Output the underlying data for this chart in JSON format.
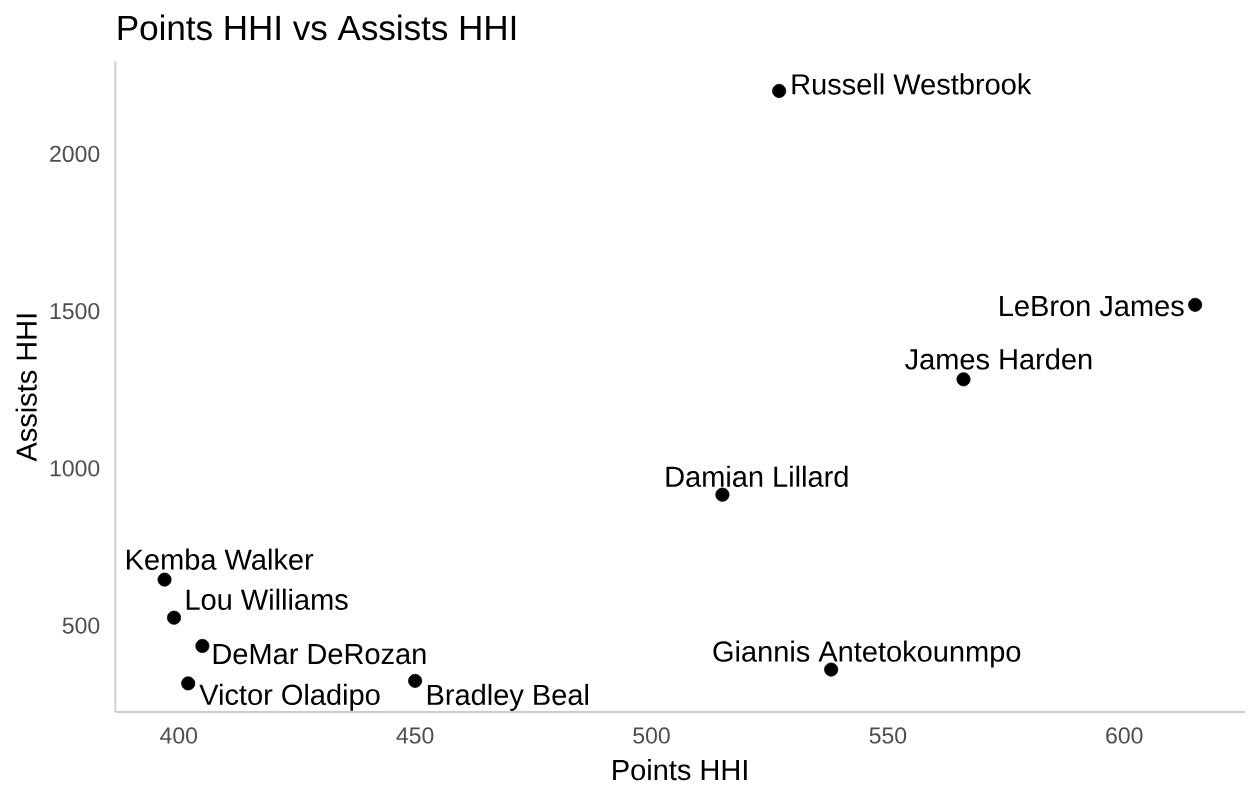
{
  "chart_data": {
    "type": "scatter",
    "title": "Points HHI vs Assists HHI",
    "xlabel": "Points HHI",
    "ylabel": "Assists HHI",
    "x": [
      527,
      615,
      566,
      515,
      538,
      397,
      399,
      405,
      402,
      450
    ],
    "values": [
      2200,
      1520,
      1283,
      916,
      360,
      646,
      525,
      435,
      316,
      324
    ],
    "color": "#000000",
    "marker": "circle",
    "annotations": [
      {
        "text": "Russell Westbrook",
        "x": 527,
        "y": 2200
      },
      {
        "text": "LeBron James",
        "x": 615,
        "y": 1520
      },
      {
        "text": "James Harden",
        "x": 566,
        "y": 1283
      },
      {
        "text": "Damian Lillard",
        "x": 515,
        "y": 916
      },
      {
        "text": "Giannis Antetokounmpo",
        "x": 538,
        "y": 360
      },
      {
        "text": "Kemba Walker",
        "x": 397,
        "y": 646
      },
      {
        "text": "Lou Williams",
        "x": 399,
        "y": 525
      },
      {
        "text": "DeMar DeRozan",
        "x": 405,
        "y": 435
      },
      {
        "text": "Victor Oladipo",
        "x": 402,
        "y": 316
      },
      {
        "text": "Bradley Beal",
        "x": 450,
        "y": 324
      }
    ],
    "xlim": [
      386.6,
      625.5
    ],
    "ylim": [
      225,
      2294
    ],
    "xticks": [
      400,
      450,
      500,
      550,
      600
    ],
    "yticks": [
      500,
      1000,
      1500,
      2000
    ]
  }
}
